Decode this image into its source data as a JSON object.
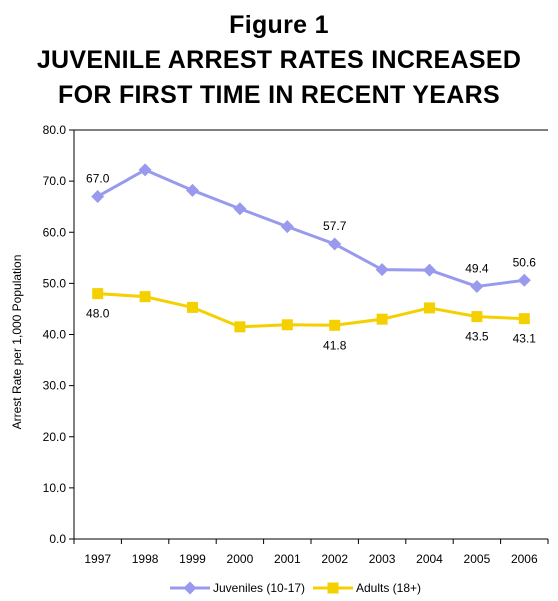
{
  "figure": {
    "heading": "Figure 1",
    "title_line1": "JUVENILE ARREST RATES INCREASED",
    "title_line2": "FOR FIRST TIME IN RECENT YEARS"
  },
  "chart_data": {
    "type": "line",
    "title": "JUVENILE ARREST RATES INCREASED FOR FIRST TIME IN RECENT YEARS",
    "xlabel": "",
    "ylabel": "Arrest Rate per 1,000 Population",
    "ylim": [
      0,
      80
    ],
    "yticks": [
      "0.0",
      "10.0",
      "20.0",
      "30.0",
      "40.0",
      "50.0",
      "60.0",
      "70.0",
      "80.0"
    ],
    "categories": [
      "1997",
      "1998",
      "1999",
      "2000",
      "2001",
      "2002",
      "2003",
      "2004",
      "2005",
      "2006"
    ],
    "legend_position": "bottom",
    "grid": false,
    "series": [
      {
        "name": "Juveniles (10-17)",
        "color": "#9999ee",
        "marker": "diamond",
        "values": [
          67.0,
          72.2,
          68.2,
          64.6,
          61.1,
          57.7,
          52.7,
          52.6,
          49.4,
          50.6
        ],
        "labels": [
          {
            "index": 0,
            "text": "67.0",
            "position": "above"
          },
          {
            "index": 5,
            "text": "57.7",
            "position": "above"
          },
          {
            "index": 8,
            "text": "49.4",
            "position": "above"
          },
          {
            "index": 9,
            "text": "50.6",
            "position": "above"
          }
        ]
      },
      {
        "name": "Adults (18+)",
        "color": "#f5d000",
        "marker": "square",
        "values": [
          48.0,
          47.4,
          45.3,
          41.5,
          41.9,
          41.8,
          43.0,
          45.2,
          43.5,
          43.1
        ],
        "labels": [
          {
            "index": 0,
            "text": "48.0",
            "position": "below"
          },
          {
            "index": 5,
            "text": "41.8",
            "position": "below"
          },
          {
            "index": 8,
            "text": "43.5",
            "position": "below"
          },
          {
            "index": 9,
            "text": "43.1",
            "position": "below"
          }
        ]
      }
    ]
  }
}
